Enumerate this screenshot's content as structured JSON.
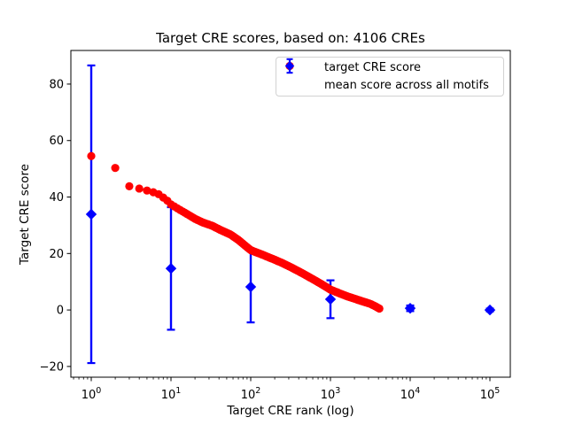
{
  "chart_data": {
    "type": "scatter",
    "title": "Target CRE scores, based on: 4106 CREs",
    "xlabel": "Target CRE rank (log)",
    "ylabel": "Target CRE score",
    "x_scale": "log",
    "x_tick_exponents": [
      0,
      1,
      2,
      3,
      4,
      5
    ],
    "y_ticks": [
      -20,
      0,
      20,
      40,
      60,
      80
    ],
    "x_log_range": [
      -0.2556,
      5.2556
    ],
    "y_range": [
      -23.8,
      91.9
    ],
    "grid": false,
    "legend_position": "upper right",
    "n_points": 4106,
    "series": [
      {
        "name": "target CRE score",
        "marker": "circle",
        "color": "#ff0000",
        "last_rank": 4106,
        "anchors_rank_score": [
          [
            1,
            54.5
          ],
          [
            2,
            50.3
          ],
          [
            3,
            43.8
          ],
          [
            4,
            43.0
          ],
          [
            5,
            42.3
          ],
          [
            6,
            41.7
          ],
          [
            7,
            41.0
          ],
          [
            8,
            39.8
          ],
          [
            9,
            38.7
          ],
          [
            10,
            37.4
          ],
          [
            12,
            36.0
          ],
          [
            15,
            34.4
          ],
          [
            20,
            32.3
          ],
          [
            25,
            31.0
          ],
          [
            33,
            29.8
          ],
          [
            42,
            28.3
          ],
          [
            56,
            26.7
          ],
          [
            70,
            24.8
          ],
          [
            85,
            22.8
          ],
          [
            100,
            21.2
          ],
          [
            120,
            20.3
          ],
          [
            140,
            19.6
          ],
          [
            170,
            18.6
          ],
          [
            200,
            17.8
          ],
          [
            250,
            16.6
          ],
          [
            316,
            15.2
          ],
          [
            400,
            13.7
          ],
          [
            500,
            12.2
          ],
          [
            630,
            10.6
          ],
          [
            800,
            8.9
          ],
          [
            1000,
            7.2
          ],
          [
            1300,
            5.9
          ],
          [
            1600,
            4.9
          ],
          [
            2000,
            4.0
          ],
          [
            2500,
            3.1
          ],
          [
            3150,
            2.2
          ],
          [
            3600,
            1.4
          ],
          [
            4106,
            0.5
          ]
        ]
      },
      {
        "name": "mean score across all motifs",
        "marker": "diamond",
        "color": "#0000ff",
        "points": [
          {
            "rank": 1,
            "mean": 33.9,
            "err": 52.7
          },
          {
            "rank": 10,
            "mean": 14.7,
            "err": 21.7
          },
          {
            "rank": 100,
            "mean": 8.2,
            "err": 12.6
          },
          {
            "rank": 1000,
            "mean": 3.8,
            "err": 6.7
          },
          {
            "rank": 10000,
            "mean": 0.6,
            "err": 1.0
          },
          {
            "rank": 100000,
            "mean": 0.0,
            "err": 0.5
          }
        ]
      }
    ]
  }
}
